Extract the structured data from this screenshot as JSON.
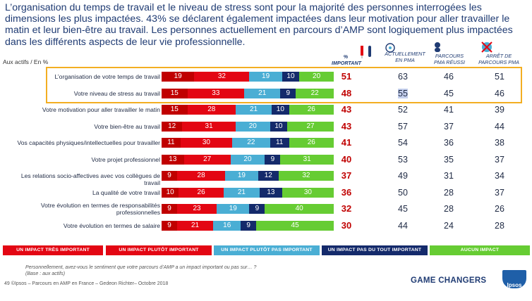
{
  "headline": "L’organisation du temps de travail et le niveau de stress sont pour la majorité des personnes interrogées les dimensions les plus impactées. 43% se déclarent également impactées dans leur motivation pour aller travailler le matin et leur bien-être au travail. Les personnes actuellement en parcours d’AMP sont logiquement plus impactées dans les différents aspects de leur vie professionnelle.",
  "unit_label": "Aux actifs / En %",
  "columns": {
    "important": "% IMPORTANT",
    "actuellement": [
      "ACTUELLEMENT",
      "EN PMA"
    ],
    "parcours": [
      "PARCOURS",
      "PMA RÉUSSI"
    ],
    "arret": [
      "ARRÊT DE",
      "PARCOURS PMA"
    ]
  },
  "colors": {
    "tres_important": "#e30613",
    "plutot_important": "#e30613",
    "dark_red": "#c00000",
    "plutot_pas": "#4aaed4",
    "pas_du_tout": "#142a6b",
    "aucun": "#66cc33",
    "highlight_border": "#f3ae22"
  },
  "chart_data": {
    "type": "bar",
    "orientation": "horizontal",
    "stacked": true,
    "categories": [
      "L’organisation de votre temps de travail",
      "Votre niveau de stress au travail",
      "Votre motivation pour aller travailler le matin",
      "Votre bien-être au travail",
      "Vos capacités physiques/intellectuelles pour travailler",
      "Votre projet professionnel",
      "Les relations socio-affectives avec vos collègues de travail",
      "La qualité de votre travail",
      "Votre évolution en termes de responsabilités professionnelles",
      "Votre évolution en termes de salaire"
    ],
    "series": [
      {
        "name": "UN IMPACT TRÈS IMPORTANT",
        "values": [
          19,
          15,
          15,
          12,
          11,
          13,
          9,
          10,
          9,
          9
        ]
      },
      {
        "name": "UN IMPACT PLUTÔT IMPORTANT",
        "values": [
          32,
          33,
          28,
          31,
          30,
          27,
          28,
          26,
          23,
          21
        ]
      },
      {
        "name": "UN IMPACT PLUTÔT PAS IMPORTANT",
        "values": [
          19,
          21,
          21,
          20,
          22,
          20,
          19,
          21,
          19,
          16
        ]
      },
      {
        "name": "UN IMPACT PAS DU TOUT IMPORTANT",
        "values": [
          10,
          9,
          10,
          10,
          11,
          9,
          12,
          13,
          9,
          9
        ]
      },
      {
        "name": "AUCUN IMPACT",
        "values": [
          20,
          22,
          26,
          27,
          26,
          31,
          32,
          30,
          40,
          45
        ]
      }
    ],
    "pct_important": [
      51,
      48,
      43,
      43,
      41,
      40,
      37,
      36,
      32,
      30
    ],
    "actuellement_en_pma": [
      63,
      55,
      52,
      57,
      54,
      53,
      49,
      50,
      45,
      44
    ],
    "parcours_pma_reussi": [
      46,
      45,
      41,
      37,
      36,
      35,
      31,
      28,
      28,
      24
    ],
    "arret_parcours_pma": [
      51,
      46,
      39,
      44,
      38,
      37,
      34,
      37,
      26,
      28
    ],
    "highlighted_rows": [
      0,
      1
    ],
    "highlighted_cell": {
      "row": 1,
      "column": "actuellement_en_pma"
    }
  },
  "footnote": [
    "Personnellement, avez-vous le sentiment que votre parcours d’AMP a un impact important ou pas sur… ?",
    "(Base : aux actifs)"
  ],
  "footer": "49     ©Ipsos – Parcours en AMP en France – Gedeon Richter– Octobre 2018",
  "brand": "GAME CHANGERS",
  "logo": "Ipsos"
}
